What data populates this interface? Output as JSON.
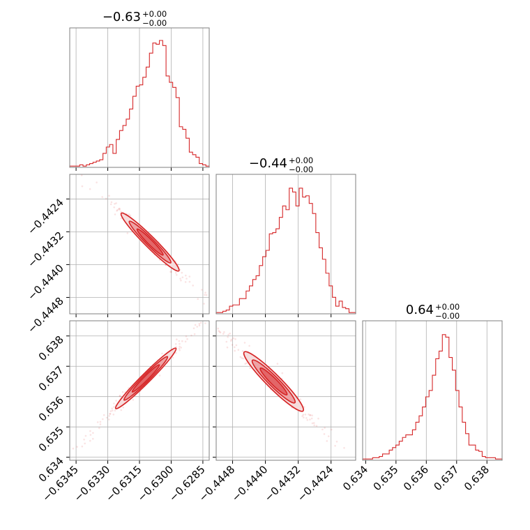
{
  "colors": {
    "series": "#d62728",
    "fill1": "#f6dcdc",
    "fill2": "#eda3a5",
    "fill3": "#e36668",
    "frame": "#7f7f7f",
    "grid": "#b0b0b0"
  },
  "chart_data": {
    "type": "corner",
    "grid": true,
    "parameters": [
      {
        "index": 0,
        "title_value": "−0.63",
        "title_plus": "+0.00",
        "title_minus": "−0.00",
        "range": [
          -0.6348,
          -0.6282
        ],
        "ticks": [
          -0.6345,
          -0.633,
          -0.6315,
          -0.63,
          -0.6285
        ],
        "tick_labels": [
          "−0.6345",
          "−0.6330",
          "−0.6315",
          "−0.6300",
          "−0.6285"
        ],
        "hist": [
          0.01,
          0.01,
          0.01,
          0.02,
          0.01,
          0.02,
          0.03,
          0.04,
          0.05,
          0.06,
          0.11,
          0.16,
          0.18,
          0.11,
          0.22,
          0.29,
          0.33,
          0.38,
          0.46,
          0.56,
          0.64,
          0.65,
          0.71,
          0.79,
          0.9,
          0.98,
          0.97,
          1.0,
          0.96,
          0.72,
          0.67,
          0.63,
          0.55,
          0.32,
          0.3,
          0.23,
          0.12,
          0.1,
          0.08,
          0.03,
          0.02,
          0.01
        ]
      },
      {
        "index": 1,
        "title_value": "−0.44",
        "title_plus": "+0.00",
        "title_minus": "−0.00",
        "range": [
          -0.4452,
          -0.4418
        ],
        "ticks": [
          -0.4448,
          -0.444,
          -0.4432,
          -0.4424
        ],
        "tick_labels": [
          "−0.4448",
          "−0.4440",
          "−0.4432",
          "−0.4424"
        ],
        "hist": [
          0.01,
          0.01,
          0.02,
          0.03,
          0.06,
          0.07,
          0.07,
          0.12,
          0.12,
          0.18,
          0.22,
          0.27,
          0.3,
          0.38,
          0.45,
          0.5,
          0.63,
          0.64,
          0.67,
          0.76,
          0.85,
          0.82,
          0.99,
          0.96,
          0.85,
          0.99,
          0.92,
          0.93,
          0.87,
          0.79,
          0.64,
          0.52,
          0.43,
          0.32,
          0.22,
          0.13,
          0.06,
          0.1,
          0.05,
          0.04,
          0.01,
          0.01
        ]
      },
      {
        "index": 2,
        "title_value": "0.64",
        "title_plus": "+0.00",
        "title_minus": "−0.00",
        "range": [
          0.6339,
          0.6385
        ],
        "ticks": [
          0.634,
          0.635,
          0.636,
          0.637,
          0.638
        ],
        "tick_labels": [
          "0.634",
          "0.635",
          "0.636",
          "0.637",
          "0.638"
        ],
        "hist": [
          0.01,
          0.01,
          0.01,
          0.02,
          0.02,
          0.03,
          0.05,
          0.05,
          0.08,
          0.1,
          0.12,
          0.15,
          0.18,
          0.2,
          0.2,
          0.24,
          0.3,
          0.35,
          0.42,
          0.5,
          0.55,
          0.67,
          0.8,
          0.86,
          0.99,
          0.97,
          0.81,
          0.71,
          0.55,
          0.42,
          0.3,
          0.21,
          0.12,
          0.12,
          0.08,
          0.07,
          0.03,
          0.02,
          0.02,
          0.02,
          0.01,
          0.01
        ]
      }
    ],
    "pairs": [
      {
        "x_param": 0,
        "y_param": 1,
        "corr": -1,
        "center": [
          -0.631,
          -0.44345
        ],
        "major_halfwidth": 0.86,
        "minor_halfwidth": 0.035
      },
      {
        "x_param": 0,
        "y_param": 2,
        "corr": 1,
        "center": [
          -0.6312,
          0.6366
        ],
        "major_halfwidth": 0.9,
        "minor_halfwidth": 0.03
      },
      {
        "x_param": 1,
        "y_param": 2,
        "corr": -1,
        "center": [
          -0.4438,
          0.6365
        ],
        "major_halfwidth": 0.88,
        "minor_halfwidth": 0.045
      }
    ]
  }
}
